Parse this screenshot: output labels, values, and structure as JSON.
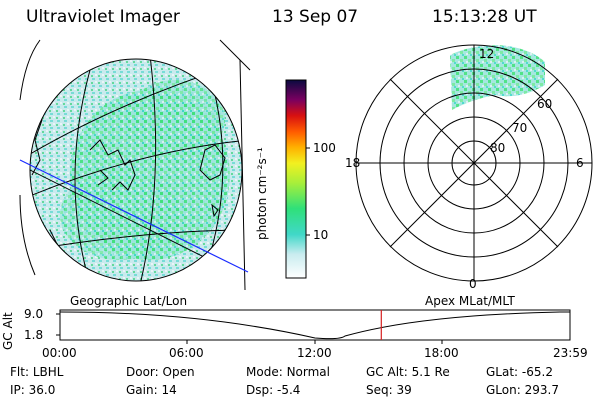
{
  "header": {
    "instrument": "Ultraviolet Imager",
    "date": "13 Sep 07",
    "time": "15:13:28 UT"
  },
  "colorbar": {
    "label": "photon cm⁻²s⁻¹",
    "ticks": [
      "100",
      "10"
    ]
  },
  "polar": {
    "lat_labels": [
      "60",
      "70",
      "80"
    ],
    "mlt_labels": [
      "12",
      "18",
      "6",
      "0"
    ]
  },
  "timeline": {
    "left_title": "Geographic Lat/Lon",
    "right_title": "Apex MLat/MLT",
    "axis_label": "GC Alt",
    "y_ticks": [
      "9.0",
      "1.8"
    ],
    "x_ticks": [
      "00:00",
      "06:00",
      "12:00",
      "18:00",
      "23:59"
    ],
    "current_time_fraction": 0.63
  },
  "status": {
    "row1": [
      {
        "label": "Flt:",
        "value": "LBHL"
      },
      {
        "label": "Door:",
        "value": "Open"
      },
      {
        "label": "Mode:",
        "value": "Normal"
      },
      {
        "label": "GC Alt:",
        "value": "5.1 Re"
      },
      {
        "label": "GLat:",
        "value": "-65.2"
      }
    ],
    "row2": [
      {
        "label": "IP:",
        "value": "36.0"
      },
      {
        "label": "Gain:",
        "value": "14"
      },
      {
        "label": "Dsp:",
        "value": "-5.4"
      },
      {
        "label": "Seq:",
        "value": "39"
      },
      {
        "label": "GLon:",
        "value": "293.7"
      }
    ]
  },
  "colors": {
    "aurora_green": "#3ee07a",
    "aurora_cyan": "#5fd6d0",
    "aurora_pale": "#cfe8ee",
    "orbit_blue": "#1a2cff",
    "time_marker": "#d62020"
  }
}
